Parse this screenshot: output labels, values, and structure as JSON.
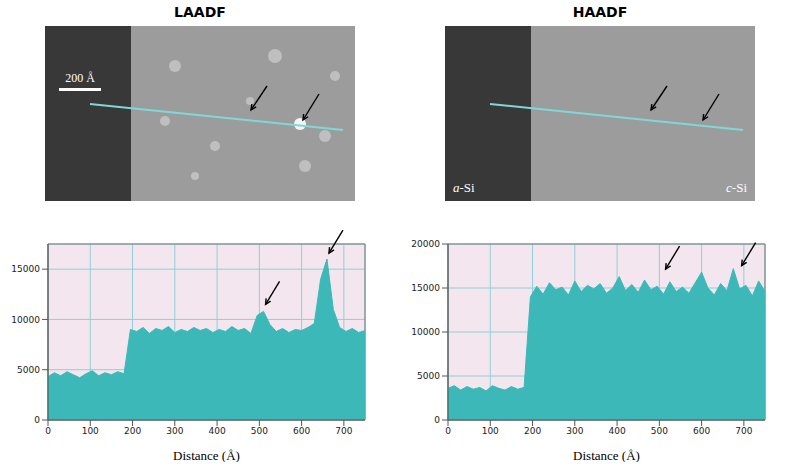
{
  "panels": [
    {
      "title": "LAADF",
      "image_labels": [
        "200 Å"
      ]
    },
    {
      "title": "HAADF",
      "image_labels": [
        "a-Si",
        "c-Si"
      ]
    }
  ],
  "chart_data": [
    {
      "type": "area",
      "x_label": "Distance (Å)",
      "color": "#3cb8b8",
      "grid": true,
      "xlim": [
        0,
        750
      ],
      "xticks": [
        0,
        100,
        200,
        300,
        400,
        500,
        600,
        700
      ],
      "ylim": [
        0,
        17500
      ],
      "yticks": [
        0,
        5000,
        10000,
        15000
      ],
      "x": [
        0,
        15,
        30,
        45,
        60,
        75,
        90,
        105,
        120,
        135,
        150,
        165,
        180,
        195,
        210,
        225,
        240,
        255,
        270,
        285,
        300,
        315,
        330,
        345,
        360,
        375,
        390,
        405,
        420,
        435,
        450,
        465,
        480,
        495,
        510,
        525,
        540,
        555,
        570,
        585,
        600,
        615,
        630,
        645,
        660,
        675,
        690,
        705,
        720,
        735,
        750
      ],
      "values": [
        4300,
        4700,
        4400,
        4800,
        4500,
        4200,
        4600,
        4900,
        4400,
        4700,
        4500,
        4800,
        4600,
        9000,
        8800,
        9200,
        8600,
        9100,
        8900,
        9300,
        8700,
        9000,
        8800,
        9200,
        8900,
        9100,
        8700,
        9000,
        8800,
        9300,
        8900,
        9100,
        8600,
        10400,
        10800,
        9500,
        8800,
        9100,
        8700,
        9000,
        8900,
        9200,
        9600,
        14000,
        16000,
        11000,
        9200,
        8800,
        9100,
        8700,
        8900
      ],
      "arrows": [
        {
          "x": 510,
          "y": 11200
        },
        {
          "x": 660,
          "y": 16300
        }
      ]
    },
    {
      "type": "area",
      "x_label": "Distance (Å)",
      "color": "#3cb8b8",
      "grid": true,
      "xlim": [
        0,
        750
      ],
      "xticks": [
        0,
        100,
        200,
        300,
        400,
        500,
        600,
        700
      ],
      "ylim": [
        0,
        20000
      ],
      "yticks": [
        0,
        5000,
        10000,
        15000,
        20000
      ],
      "x": [
        0,
        15,
        30,
        45,
        60,
        75,
        90,
        105,
        120,
        135,
        150,
        165,
        180,
        195,
        210,
        225,
        240,
        255,
        270,
        285,
        300,
        315,
        330,
        345,
        360,
        375,
        390,
        405,
        420,
        435,
        450,
        465,
        480,
        495,
        510,
        525,
        540,
        555,
        570,
        585,
        600,
        615,
        630,
        645,
        660,
        675,
        690,
        705,
        720,
        735,
        750
      ],
      "values": [
        3600,
        3900,
        3400,
        3800,
        3500,
        3700,
        3300,
        3900,
        3600,
        3400,
        3800,
        3500,
        3700,
        14000,
        15200,
        14300,
        15600,
        14800,
        15100,
        14200,
        15800,
        14600,
        15300,
        14900,
        15500,
        14400,
        15000,
        16300,
        14700,
        15400,
        14500,
        15900,
        14800,
        15200,
        14300,
        15700,
        14600,
        15100,
        14400,
        15600,
        16800,
        15000,
        14200,
        15500,
        14700,
        17200,
        14900,
        15300,
        14100,
        15800,
        14600
      ],
      "arrows": [
        {
          "x": 510,
          "y": 16800
        },
        {
          "x": 690,
          "y": 17200
        }
      ]
    }
  ]
}
